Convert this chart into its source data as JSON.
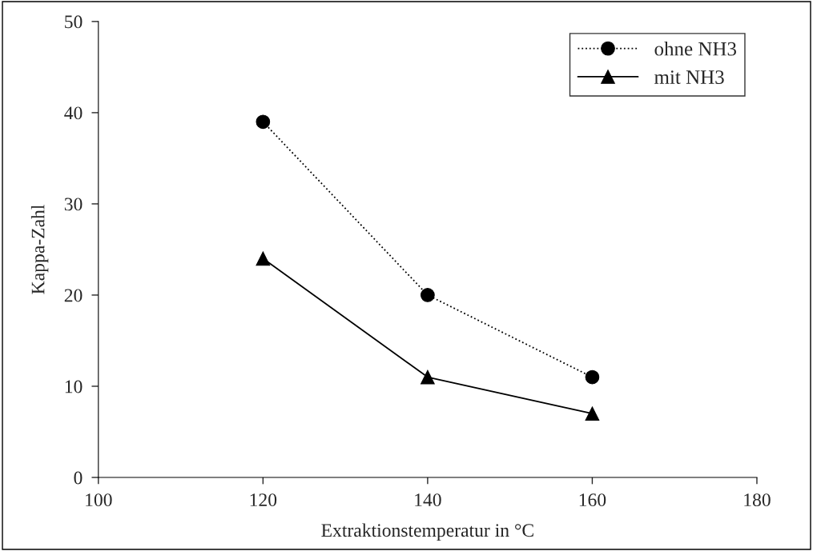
{
  "chart_data": {
    "type": "line",
    "xlabel": "Extraktionstemperatur in °C",
    "ylabel": "Kappa-Zahl",
    "x": [
      120,
      140,
      160
    ],
    "series": [
      {
        "name": "ohne NH3",
        "color": "#000000",
        "values": [
          39,
          20,
          11
        ],
        "marker": "circle",
        "line_style": "dotted"
      },
      {
        "name": "mit NH3",
        "color": "#000000",
        "values": [
          24,
          11,
          7
        ],
        "marker": "triangle",
        "line_style": "solid"
      }
    ],
    "xlim": [
      100,
      180
    ],
    "xticks": [
      100,
      120,
      140,
      160,
      180
    ],
    "ylim": [
      0,
      50
    ],
    "yticks": [
      0,
      10,
      20,
      30,
      40,
      50
    ],
    "grid": false,
    "legend": "top right"
  }
}
